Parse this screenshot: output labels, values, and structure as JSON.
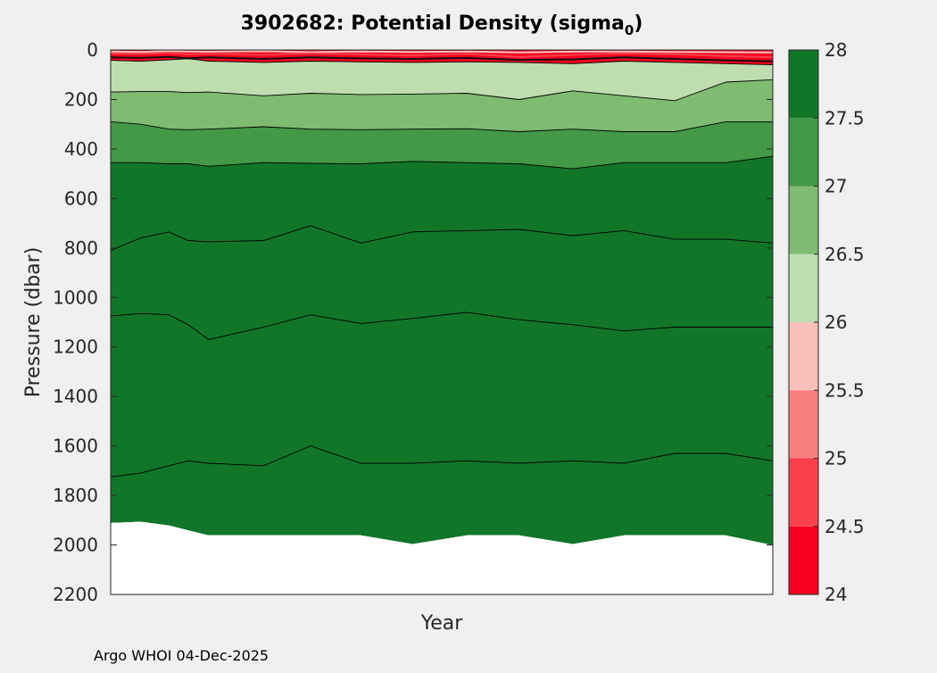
{
  "chart_data": {
    "type": "contourf",
    "title_main": "3902682: Potential Density (sigma",
    "title_sub": "0",
    "title_close": ")",
    "xlabel": "Year",
    "ylabel": "Pressure (dbar)",
    "ylim": [
      0,
      2200
    ],
    "yticks": [
      "0",
      "200",
      "400",
      "600",
      "800",
      "1000",
      "1200",
      "1400",
      "1600",
      "1800",
      "2000",
      "2200"
    ],
    "colorbar": {
      "range": [
        24,
        28
      ],
      "ticks": [
        "24",
        "24.5",
        "25",
        "25.5",
        "26",
        "26.5",
        "27",
        "27.5",
        "28"
      ],
      "levels": [
        {
          "from": 24.0,
          "to": 24.5,
          "color": "#f8001f"
        },
        {
          "from": 24.5,
          "to": 25.0,
          "color": "#f9404b"
        },
        {
          "from": 25.0,
          "to": 25.5,
          "color": "#fa7f7f"
        },
        {
          "from": 25.5,
          "to": 26.0,
          "color": "#fbbfba"
        },
        {
          "from": 26.0,
          "to": 26.5,
          "color": "#bedeb0"
        },
        {
          "from": 26.5,
          "to": 27.0,
          "color": "#7fbb70"
        },
        {
          "from": 27.0,
          "to": 27.5,
          "color": "#439946"
        },
        {
          "from": 27.5,
          "to": 28.0,
          "color": "#127629"
        }
      ]
    },
    "profile_x": [
      0,
      0.045,
      0.088,
      0.117,
      0.148,
      0.231,
      0.302,
      0.378,
      0.456,
      0.538,
      0.617,
      0.698,
      0.775,
      0.852,
      0.929,
      1.0
    ],
    "isopycnals": [
      {
        "sigma": 26.0,
        "color": "#bedeb0",
        "depth": [
          42,
          45,
          40,
          35,
          45,
          50,
          45,
          48,
          50,
          48,
          50,
          55,
          45,
          50,
          55,
          60
        ]
      },
      {
        "sigma": 26.5,
        "color": "#7fbb70",
        "depth": [
          170,
          168,
          168,
          172,
          170,
          185,
          175,
          180,
          178,
          175,
          200,
          165,
          185,
          205,
          130,
          120
        ]
      },
      {
        "sigma": 27.0,
        "color": "#439946",
        "depth": [
          290,
          300,
          320,
          322,
          320,
          310,
          320,
          322,
          320,
          318,
          330,
          320,
          330,
          330,
          290,
          290
        ]
      },
      {
        "sigma": 27.5,
        "color": "#127629",
        "depth": [
          455,
          455,
          460,
          460,
          470,
          455,
          458,
          460,
          450,
          455,
          460,
          480,
          455,
          455,
          455,
          430
        ]
      },
      {
        "sigma": 27.75,
        "color": "#127629",
        "depth": [
          810,
          760,
          735,
          770,
          775,
          770,
          710,
          780,
          735,
          730,
          725,
          750,
          730,
          765,
          765,
          780
        ]
      },
      {
        "sigma": 27.8,
        "color": "#127629",
        "depth": [
          1075,
          1065,
          1070,
          1110,
          1170,
          1120,
          1070,
          1105,
          1085,
          1060,
          1090,
          1110,
          1135,
          1120,
          1120,
          1120
        ]
      },
      {
        "sigma": 27.85,
        "color": "#127629",
        "depth": [
          1725,
          1710,
          1680,
          1660,
          1670,
          1680,
          1600,
          1670,
          1670,
          1660,
          1670,
          1660,
          1670,
          1630,
          1630,
          1660
        ]
      }
    ],
    "data_bottom": [
      1910,
      1905,
      1920,
      1940,
      1960,
      1960,
      1960,
      1960,
      1995,
      1960,
      1960,
      1995,
      1960,
      1960,
      1960,
      2000
    ]
  },
  "footer": "Argo WHOI 04-Dec-2025"
}
